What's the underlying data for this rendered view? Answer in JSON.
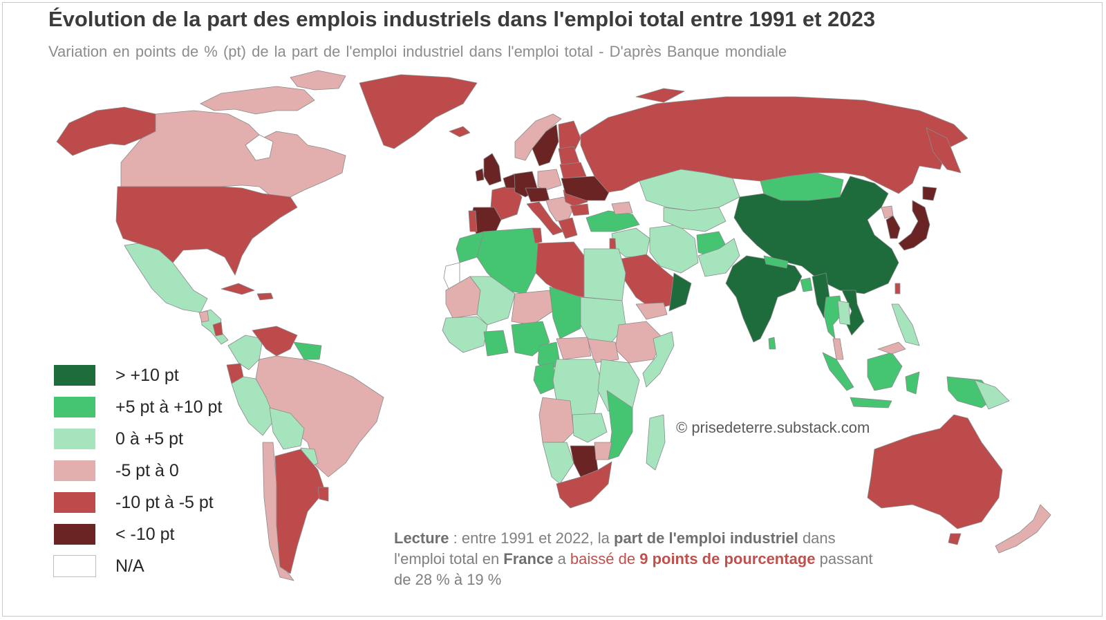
{
  "title": "Évolution de la part des emplois industriels dans l'emploi total entre 1991 et 2023",
  "subtitle": "Variation en points de % (pt) de la part de l'emploi industriel dans l'emploi total - D'après Banque mondiale",
  "colors": {
    "gt_plus10": "#1e6b3c",
    "plus5_plus10": "#45c472",
    "zero_plus5": "#a6e4bd",
    "minus5_zero": "#e2aeae",
    "minus10_minus5": "#be4b4b",
    "lt_minus10": "#6b2424",
    "na": "#ffffff",
    "border": "#8a8a8a"
  },
  "legend": [
    {
      "label": "> +10 pt",
      "color": "#1e6b3c"
    },
    {
      "label": "+5 pt à +10 pt",
      "color": "#45c472"
    },
    {
      "label": "0 à +5 pt",
      "color": "#a6e4bd"
    },
    {
      "label": "-5 pt à 0",
      "color": "#e2aeae"
    },
    {
      "label": "-10 pt à -5 pt",
      "color": "#be4b4b"
    },
    {
      "label": "< -10 pt",
      "color": "#6b2424"
    },
    {
      "label": "N/A",
      "color": "#ffffff"
    }
  ],
  "copyright": "© prisedeterre.substack.com",
  "reading": {
    "lead": "Lecture",
    "sep": " : ",
    "part1": "entre 1991 et 2022, la ",
    "bold1": "part de l'emploi industriel",
    "part2": " dans l'emploi total en ",
    "bold2": "France",
    "part3": " a ",
    "red1": "baissé de ",
    "redbold": "9 points de pourcentage",
    "part4": " passant de 28 % à 19 %"
  }
}
